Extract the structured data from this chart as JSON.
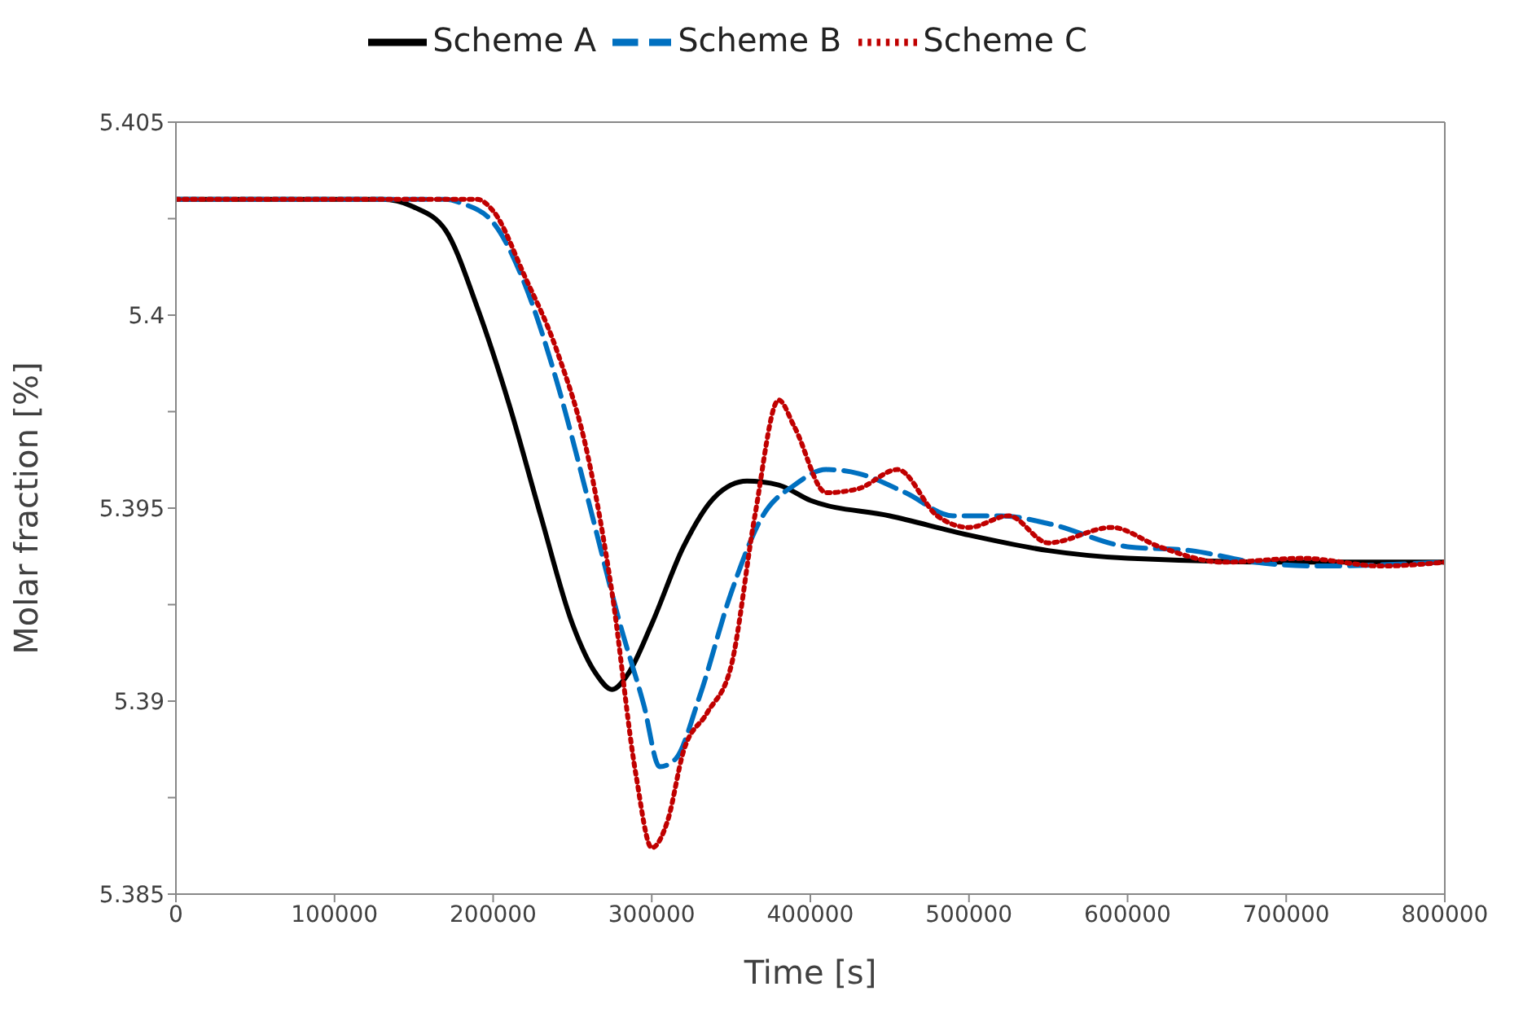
{
  "chart_data": {
    "type": "line",
    "xlabel": "Time [s]",
    "ylabel": "Molar fraction [%]",
    "xlim": [
      0,
      800000
    ],
    "xticks": [
      0,
      100000,
      200000,
      300000,
      400000,
      500000,
      600000,
      700000,
      800000
    ],
    "ylim": [
      5.385,
      5.405
    ],
    "yticks": [
      5.385,
      {
        "value": 5.3875,
        "label": null
      },
      5.39,
      {
        "value": 5.3925,
        "label": null
      },
      5.395,
      {
        "value": 5.3975,
        "label": null
      },
      5.4,
      {
        "value": 5.4025,
        "label": null
      },
      5.405
    ],
    "legend": "top",
    "marker": "none",
    "series": [
      {
        "name": "Scheme A",
        "color": "#000000",
        "line_style": "solid",
        "x": [
          0,
          130000,
          150000,
          170000,
          190000,
          210000,
          230000,
          250000,
          265000,
          275000,
          285000,
          300000,
          320000,
          340000,
          360000,
          380000,
          400000,
          450000,
          500000,
          550000,
          600000,
          700000,
          800000
        ],
        "values": [
          5.403,
          5.403,
          5.4028,
          5.4022,
          5.4002,
          5.3977,
          5.3948,
          5.392,
          5.3907,
          5.3903,
          5.3907,
          5.392,
          5.394,
          5.3953,
          5.3957,
          5.3956,
          5.3952,
          5.3948,
          5.3943,
          5.3939,
          5.3937,
          5.3936,
          5.3936
        ]
      },
      {
        "name": "Scheme B",
        "color": "#0070c0",
        "line_style": "dashed",
        "x": [
          0,
          170000,
          180000,
          200000,
          220000,
          240000,
          260000,
          280000,
          295000,
          305000,
          315000,
          330000,
          350000,
          370000,
          390000,
          410000,
          430000,
          460000,
          490000,
          520000,
          550000,
          600000,
          640000,
          680000,
          720000,
          800000
        ],
        "values": [
          5.403,
          5.403,
          5.4029,
          5.4024,
          5.4008,
          5.3983,
          5.3952,
          5.392,
          5.3899,
          5.3883,
          5.3885,
          5.3901,
          5.3928,
          5.3948,
          5.3956,
          5.396,
          5.3959,
          5.3954,
          5.3948,
          5.3948,
          5.3946,
          5.394,
          5.3939,
          5.3936,
          5.3935,
          5.3936
        ]
      },
      {
        "name": "Scheme C",
        "color": "#c00000",
        "line_style": "dotted",
        "x": [
          0,
          190000,
          200000,
          220000,
          240000,
          260000,
          275000,
          290000,
          300000,
          310000,
          320000,
          335000,
          350000,
          365000,
          380000,
          390000,
          410000,
          430000,
          455000,
          480000,
          500000,
          525000,
          550000,
          590000,
          620000,
          660000,
          710000,
          760000,
          800000
        ],
        "values": [
          5.403,
          5.403,
          5.4027,
          5.401,
          5.3991,
          5.3963,
          5.3928,
          5.3881,
          5.3862,
          5.3869,
          5.3887,
          5.3897,
          5.3909,
          5.3948,
          5.3978,
          5.3971,
          5.3954,
          5.3955,
          5.396,
          5.3948,
          5.3945,
          5.3948,
          5.3941,
          5.3945,
          5.394,
          5.3936,
          5.3937,
          5.3935,
          5.3936
        ]
      }
    ]
  }
}
